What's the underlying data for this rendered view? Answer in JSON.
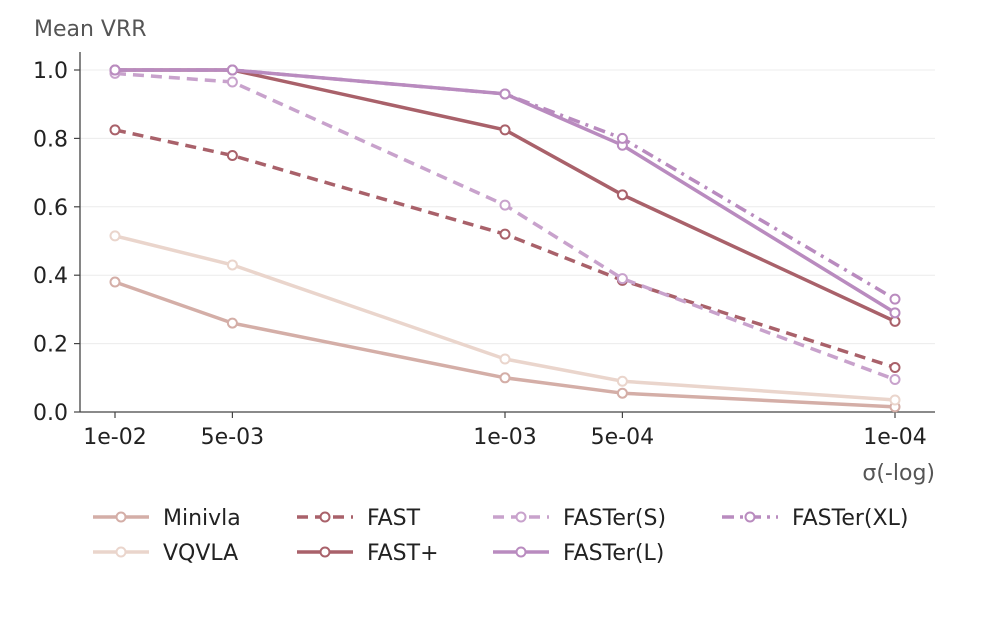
{
  "chart_data": {
    "type": "line",
    "ylabel": "Mean VRR",
    "xlabel": "σ(-log)",
    "x_ticks": [
      {
        "label": "1e-02",
        "value": 0.01
      },
      {
        "label": "5e-03",
        "value": 0.005
      },
      {
        "label": "1e-03",
        "value": 0.001
      },
      {
        "label": "5e-04",
        "value": 0.0005
      },
      {
        "label": "1e-04",
        "value": 0.0001
      }
    ],
    "x_scale": "log-reversed",
    "y_ticks": [
      "0.0",
      "0.2",
      "0.4",
      "0.6",
      "0.8",
      "1.0"
    ],
    "ylim": [
      0,
      1.0
    ],
    "grid": "horizontal",
    "legend_position": "bottom",
    "series": [
      {
        "name": "Minivla",
        "color": "#d4aea7",
        "dash": "solid",
        "values": [
          0.38,
          0.26,
          0.1,
          0.055,
          0.015
        ]
      },
      {
        "name": "VQVLA",
        "color": "#ead5cc",
        "dash": "solid",
        "values": [
          0.515,
          0.43,
          0.155,
          0.09,
          0.035
        ]
      },
      {
        "name": "FAST",
        "color": "#a9616a",
        "dash": "dashed",
        "values": [
          0.825,
          0.75,
          0.52,
          0.385,
          0.13
        ]
      },
      {
        "name": "FAST+",
        "color": "#a9616a",
        "dash": "solid",
        "values": [
          1.0,
          1.0,
          0.825,
          0.635,
          0.265
        ]
      },
      {
        "name": "FASTer(S)",
        "color": "#c8a2cc",
        "dash": "dashed",
        "values": [
          0.99,
          0.965,
          0.605,
          0.39,
          0.095
        ]
      },
      {
        "name": "FASTer(L)",
        "color": "#b98bbf",
        "dash": "solid",
        "values": [
          1.0,
          1.0,
          0.93,
          0.78,
          0.29
        ]
      },
      {
        "name": "FASTer(XL)",
        "color": "#b98bbf",
        "dash": "dashdot",
        "values": [
          1.0,
          1.0,
          0.93,
          0.8,
          0.33
        ]
      }
    ]
  }
}
